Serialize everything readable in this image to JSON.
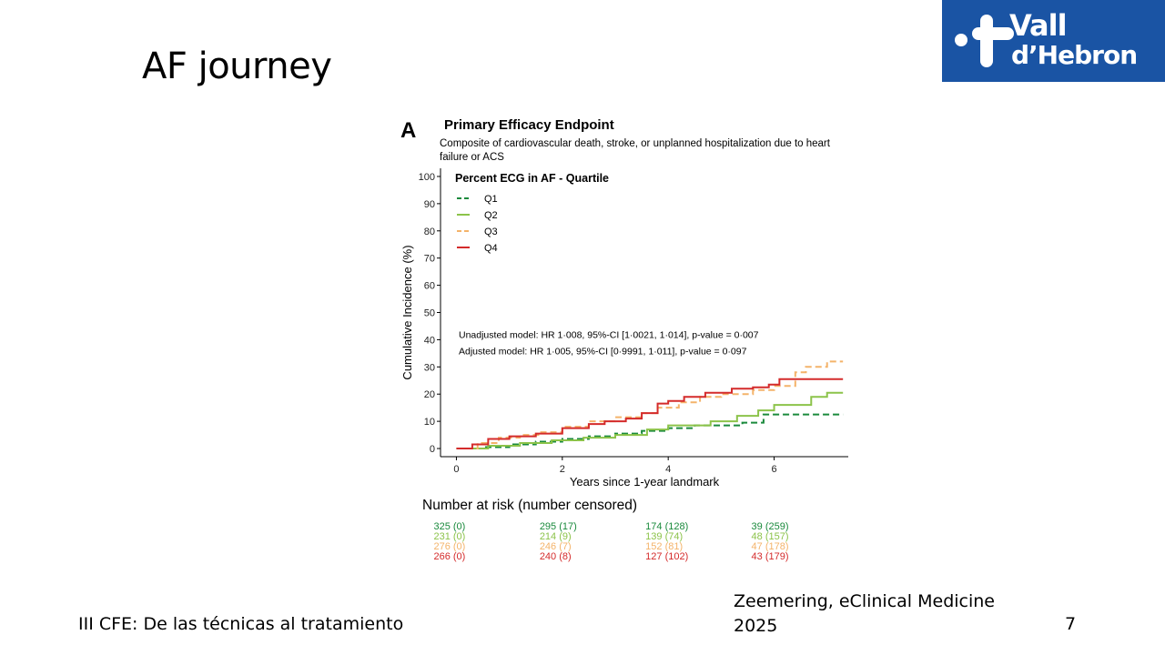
{
  "slide": {
    "title": "AF journey",
    "footer": "III CFE: De las técnicas al tratamiento",
    "citation": "Zeemering, eClinical Medicine 2025",
    "page_number": "7"
  },
  "logo": {
    "line1": "Vall",
    "line2": "d’Hebron",
    "background": "#1a54a4"
  },
  "chart_data": {
    "type": "line",
    "panel_label": "A",
    "title": "Primary Efficacy Endpoint",
    "subtitle": "Composite of cardiovascular death, stroke, or unplanned hospitalization due to heart failure or ACS",
    "xlabel": "Years since 1-year landmark",
    "ylabel": "Cumulative Incidence (%)",
    "xlim": [
      -0.3,
      7.4
    ],
    "ylim": [
      -3,
      103
    ],
    "xticks": [
      0,
      2,
      4,
      6
    ],
    "yticks": [
      0,
      10,
      20,
      30,
      40,
      50,
      60,
      70,
      80,
      90,
      100
    ],
    "grid": false,
    "legend": {
      "title": "Percent ECG in AF - Quartile",
      "position": "top-left"
    },
    "annotations": [
      "Unadjusted model: HR 1·008, 95%-CI [1·0021, 1·014], p-value = 0·007",
      "Adjusted model: HR 1·005, 95%-CI [0·9991, 1·011], p-value = 0·097"
    ],
    "series": [
      {
        "name": "Q1",
        "color": "#1a8a3c",
        "dash": "dashed",
        "x": [
          0,
          0.5,
          1.0,
          1.5,
          2.0,
          2.5,
          3.0,
          3.5,
          4.0,
          4.5,
          5.0,
          5.4,
          5.8,
          7.3
        ],
        "y": [
          0,
          0.5,
          1.5,
          2.5,
          3.5,
          4.5,
          5.5,
          6.5,
          7.5,
          8.5,
          8.5,
          9.5,
          12.5,
          12.5
        ]
      },
      {
        "name": "Q2",
        "color": "#8cc34a",
        "dash": "solid",
        "x": [
          0,
          0.6,
          1.2,
          1.8,
          2.4,
          3.0,
          3.6,
          4.0,
          4.8,
          5.3,
          5.7,
          6.0,
          6.6,
          6.7,
          7.0,
          7.3
        ],
        "y": [
          0,
          1,
          2,
          3,
          4,
          5,
          7,
          8.5,
          10,
          12,
          14,
          16,
          16,
          19,
          20.5,
          20.5
        ]
      },
      {
        "name": "Q3",
        "color": "#f4b36a",
        "dash": "dashed",
        "x": [
          0,
          0.4,
          0.8,
          1.2,
          1.6,
          2.0,
          2.5,
          3.0,
          3.5,
          3.8,
          4.2,
          4.6,
          5.0,
          5.6,
          6.0,
          6.4,
          6.6,
          7.0,
          7.3
        ],
        "y": [
          0,
          2,
          4,
          5,
          6,
          8,
          10,
          11.5,
          13,
          15,
          17,
          19,
          20,
          21.5,
          23,
          28,
          30,
          32,
          32
        ]
      },
      {
        "name": "Q4",
        "color": "#d42b2b",
        "dash": "solid",
        "x": [
          0,
          0.3,
          0.6,
          1.0,
          1.5,
          2.0,
          2.5,
          2.8,
          3.2,
          3.5,
          3.8,
          4.0,
          4.3,
          4.7,
          5.2,
          5.6,
          5.9,
          6.1,
          6.5,
          7.3
        ],
        "y": [
          0,
          1.5,
          3.5,
          4.5,
          5.5,
          7.5,
          9,
          10,
          11,
          13,
          16.5,
          17.5,
          19,
          20.5,
          22,
          22.5,
          23.5,
          25.5,
          25.5,
          25.5
        ]
      }
    ],
    "risk_table": {
      "title": "Number at risk (number censored)",
      "rows": [
        {
          "name": "Q1",
          "color": "#1a8a3c",
          "values": [
            "325 (0)",
            "295 (17)",
            "174 (128)",
            "39 (259)"
          ]
        },
        {
          "name": "Q2",
          "color": "#8cc34a",
          "values": [
            "231 (0)",
            "214 (9)",
            "139 (74)",
            "48 (157)"
          ]
        },
        {
          "name": "Q3",
          "color": "#f4b36a",
          "values": [
            "276 (0)",
            "246 (7)",
            "152 (81)",
            "47 (178)"
          ]
        },
        {
          "name": "Q4",
          "color": "#d42b2b",
          "values": [
            "266 (0)",
            "240 (8)",
            "127 (102)",
            "43 (179)"
          ]
        }
      ]
    }
  }
}
